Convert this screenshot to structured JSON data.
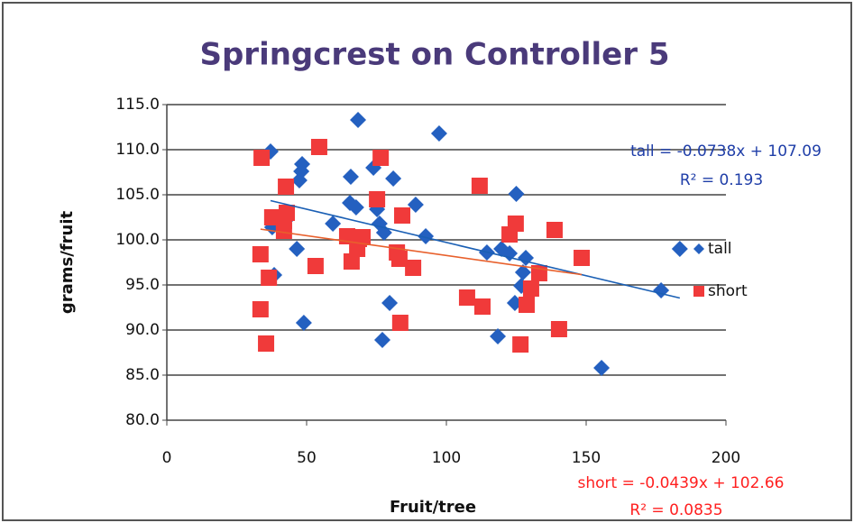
{
  "chart_data": {
    "type": "scatter",
    "title": "Springcrest on Controller 5",
    "x_label": "Fruit/tree",
    "y_label": "grams/fruit",
    "xlim": [
      0,
      200
    ],
    "ylim": [
      80,
      115
    ],
    "xticks": [
      0,
      50,
      100,
      150,
      200
    ],
    "yticks": [
      {
        "value": 80,
        "label": "80.0"
      },
      {
        "value": 85,
        "label": "85.0"
      },
      {
        "value": 90,
        "label": "90.0"
      },
      {
        "value": 95,
        "label": "95.0"
      },
      {
        "value": 100,
        "label": "100.0"
      },
      {
        "value": 105,
        "label": "105.0"
      },
      {
        "value": 110,
        "label": "110.0"
      },
      {
        "value": 115,
        "label": "115.0"
      }
    ],
    "grid": true,
    "legend": "right",
    "series": [
      {
        "name": "tall",
        "color": "#2460c0",
        "marker": "diamond",
        "x": [
          37.1,
          37.7,
          38.4,
          42.6,
          46.5,
          47.4,
          48.1,
          48.4,
          49.0,
          59.4,
          65.5,
          65.8,
          67.7,
          68.4,
          73.9,
          75.2,
          76.1,
          77.1,
          77.7,
          79.7,
          81.0,
          89.0,
          92.6,
          97.4,
          114.5,
          118.4,
          119.7,
          122.6,
          125.0,
          124.5,
          126.8,
          127.4,
          128.4,
          155.5,
          176.8,
          183.5
        ],
        "values": [
          109.8,
          101.4,
          96.1,
          102.2,
          99.0,
          106.6,
          107.6,
          108.4,
          90.8,
          101.8,
          104.1,
          107.0,
          103.6,
          113.3,
          108.0,
          103.4,
          101.8,
          88.9,
          100.8,
          93.0,
          106.8,
          103.9,
          100.4,
          111.8,
          98.6,
          89.3,
          99.0,
          98.5,
          105.1,
          93.0,
          94.9,
          96.4,
          98.0,
          85.8,
          94.4,
          99.0
        ],
        "trendline": {
          "color": "#1a5fb4",
          "slope": -0.0738,
          "intercept": 107.09,
          "label": "tall = -0.0738x + 107.09",
          "r2": 0.193,
          "r2_label": "R² = 0.193",
          "text_color": "#1f3ea8"
        }
      },
      {
        "name": "short",
        "color": "#f03a3a",
        "marker": "square",
        "x": [
          33.9,
          33.5,
          33.5,
          35.5,
          36.5,
          37.7,
          41.9,
          41.9,
          42.9,
          42.6,
          53.2,
          54.5,
          64.5,
          66.1,
          68.1,
          68.7,
          70.0,
          75.2,
          76.5,
          82.3,
          83.2,
          84.2,
          83.5,
          88.1,
          107.4,
          112.9,
          111.9,
          122.6,
          124.8,
          126.5,
          128.7,
          130.3,
          133.2,
          138.7,
          140.3,
          148.4
        ],
        "values": [
          109.1,
          98.4,
          92.3,
          88.5,
          95.8,
          102.5,
          102.1,
          101.0,
          103.0,
          105.9,
          97.1,
          110.3,
          100.4,
          97.6,
          99.0,
          100.1,
          100.3,
          104.5,
          109.1,
          98.6,
          97.9,
          102.7,
          90.8,
          96.9,
          93.6,
          92.6,
          106.0,
          100.6,
          101.8,
          88.4,
          92.8,
          94.6,
          96.3,
          101.1,
          90.1,
          98.0
        ],
        "trendline": {
          "color": "#e8602c",
          "slope": -0.0439,
          "intercept": 102.66,
          "label": "short  = -0.0439x + 102.66",
          "r2": 0.0835,
          "r2_label": "R² = 0.0835",
          "text_color": "#ff2020"
        }
      }
    ]
  }
}
